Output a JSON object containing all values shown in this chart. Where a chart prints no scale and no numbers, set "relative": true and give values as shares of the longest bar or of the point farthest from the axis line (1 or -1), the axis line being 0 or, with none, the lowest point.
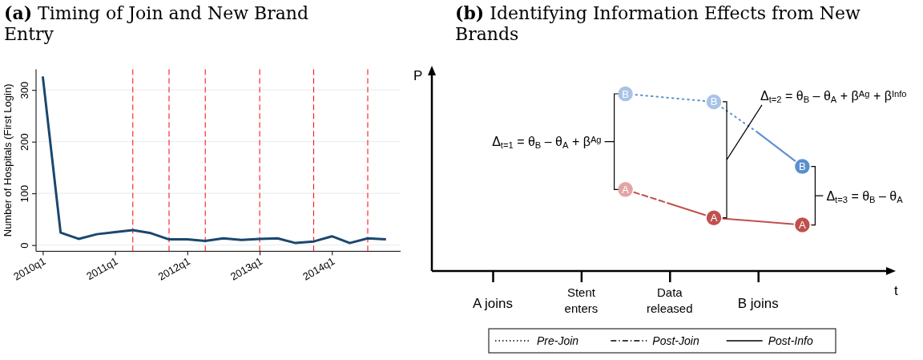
{
  "chart_data": [
    {
      "type": "line",
      "title": "(a) Timing of Join and New Brand Entry",
      "ylabel": "Number of Hospitals (First Login)",
      "x": [
        "2010-01",
        "2010-04",
        "2010-07",
        "2010-10",
        "2011-01",
        "2011-04",
        "2011-07",
        "2011-10",
        "2012-01",
        "2012-04",
        "2012-07",
        "2012-10",
        "2013-01",
        "2013-04",
        "2013-07",
        "2013-10",
        "2014-01",
        "2014-04",
        "2014-07",
        "2014-10"
      ],
      "series": [
        {
          "color": "#1a476f",
          "values": [
            326,
            24,
            12,
            21,
            25,
            29,
            23,
            11,
            11,
            8,
            13,
            10,
            12,
            13,
            4,
            7,
            17,
            4,
            13,
            11
          ]
        }
      ],
      "xlim": [
        "2009-11-28",
        "2014-12-14"
      ],
      "ylim": [
        -12,
        340
      ],
      "xticks": [
        {
          "value": "2010-01",
          "label": "2010q1"
        },
        {
          "value": "2011-01",
          "label": "2011q1"
        },
        {
          "value": "2012-01",
          "label": "2012q1"
        },
        {
          "value": "2013-01",
          "label": "2013q1"
        },
        {
          "value": "2014-01",
          "label": "2014q1"
        }
      ],
      "yticks": [
        0,
        100,
        200,
        300
      ],
      "grid": "y",
      "ref_lines": [
        {
          "axis": "x",
          "value": "2011-04",
          "color": "#ff0000",
          "line_style": "dashed"
        },
        {
          "axis": "x",
          "value": "2011-10",
          "color": "#ff0000",
          "line_style": "dashed"
        },
        {
          "axis": "x",
          "value": "2012-04",
          "color": "#ff0000",
          "line_style": "dashed"
        },
        {
          "axis": "x",
          "value": "2013-01",
          "color": "#ff0000",
          "line_style": "dashed"
        },
        {
          "axis": "x",
          "value": "2013-10",
          "color": "#ff0000",
          "line_style": "dashed"
        },
        {
          "axis": "x",
          "value": "2014-07",
          "color": "#ff0000",
          "line_style": "dashed"
        }
      ]
    },
    {
      "type": "line",
      "title": "(b) Identifying Information Effects from New Brands",
      "xlabel": "t",
      "ylabel": "P",
      "relative": true,
      "categories": [
        "A joins",
        null,
        "Stent enters",
        null,
        "Data released",
        null,
        "B joins",
        null,
        null
      ],
      "series": [
        {
          "type": "line",
          "color": "#5b8fcc",
          "line_style": "dotted",
          "values": [
            null,
            null,
            null,
            1,
            0.977,
            0.955,
            0.78,
            null,
            null
          ]
        },
        {
          "type": "line",
          "color": "#5b8fcc",
          "line_style": "solid",
          "values": [
            null,
            null,
            null,
            null,
            null,
            null,
            0.78,
            0.59,
            null
          ]
        },
        {
          "type": "line",
          "color": "#c0504d",
          "line_style": "dashed",
          "values": [
            null,
            null,
            null,
            0.46,
            0.38,
            null,
            null,
            null,
            null
          ]
        },
        {
          "type": "line",
          "color": "#c0504d",
          "line_style": "solid",
          "values": [
            null,
            null,
            null,
            null,
            0.38,
            0.3,
            0.28,
            0.26,
            null
          ]
        },
        {
          "type": "scatter",
          "name": "B",
          "colors": [
            null,
            null,
            null,
            "#a8c3e6",
            null,
            "#a8c3e6",
            null,
            "#5b8fcc",
            null
          ],
          "values": [
            null,
            null,
            null,
            1,
            null,
            0.955,
            null,
            0.59,
            null
          ]
        },
        {
          "type": "scatter",
          "name": "A",
          "colors": [
            null,
            null,
            null,
            "#e3a5a3",
            null,
            "#c0504d",
            null,
            "#c0504d",
            null
          ],
          "values": [
            null,
            null,
            null,
            0.46,
            null,
            0.3,
            null,
            0.26,
            null
          ]
        }
      ],
      "annotations": [
        "Δ$_{t=1}$ = θ$_{B}$ – θ$_{A}$ + β$^{Ag}$",
        "Δ$_{t=2}$ = θ$_{B}$ – θ$_{A}$ + β$^{Ag}$ + β$^{Info}$",
        "Δ$_{t=3}$ = θ$_{B}$ – θ$_{A}$",
        "Pre-Join",
        "Post-Join",
        "Post-Info"
      ]
    }
  ]
}
